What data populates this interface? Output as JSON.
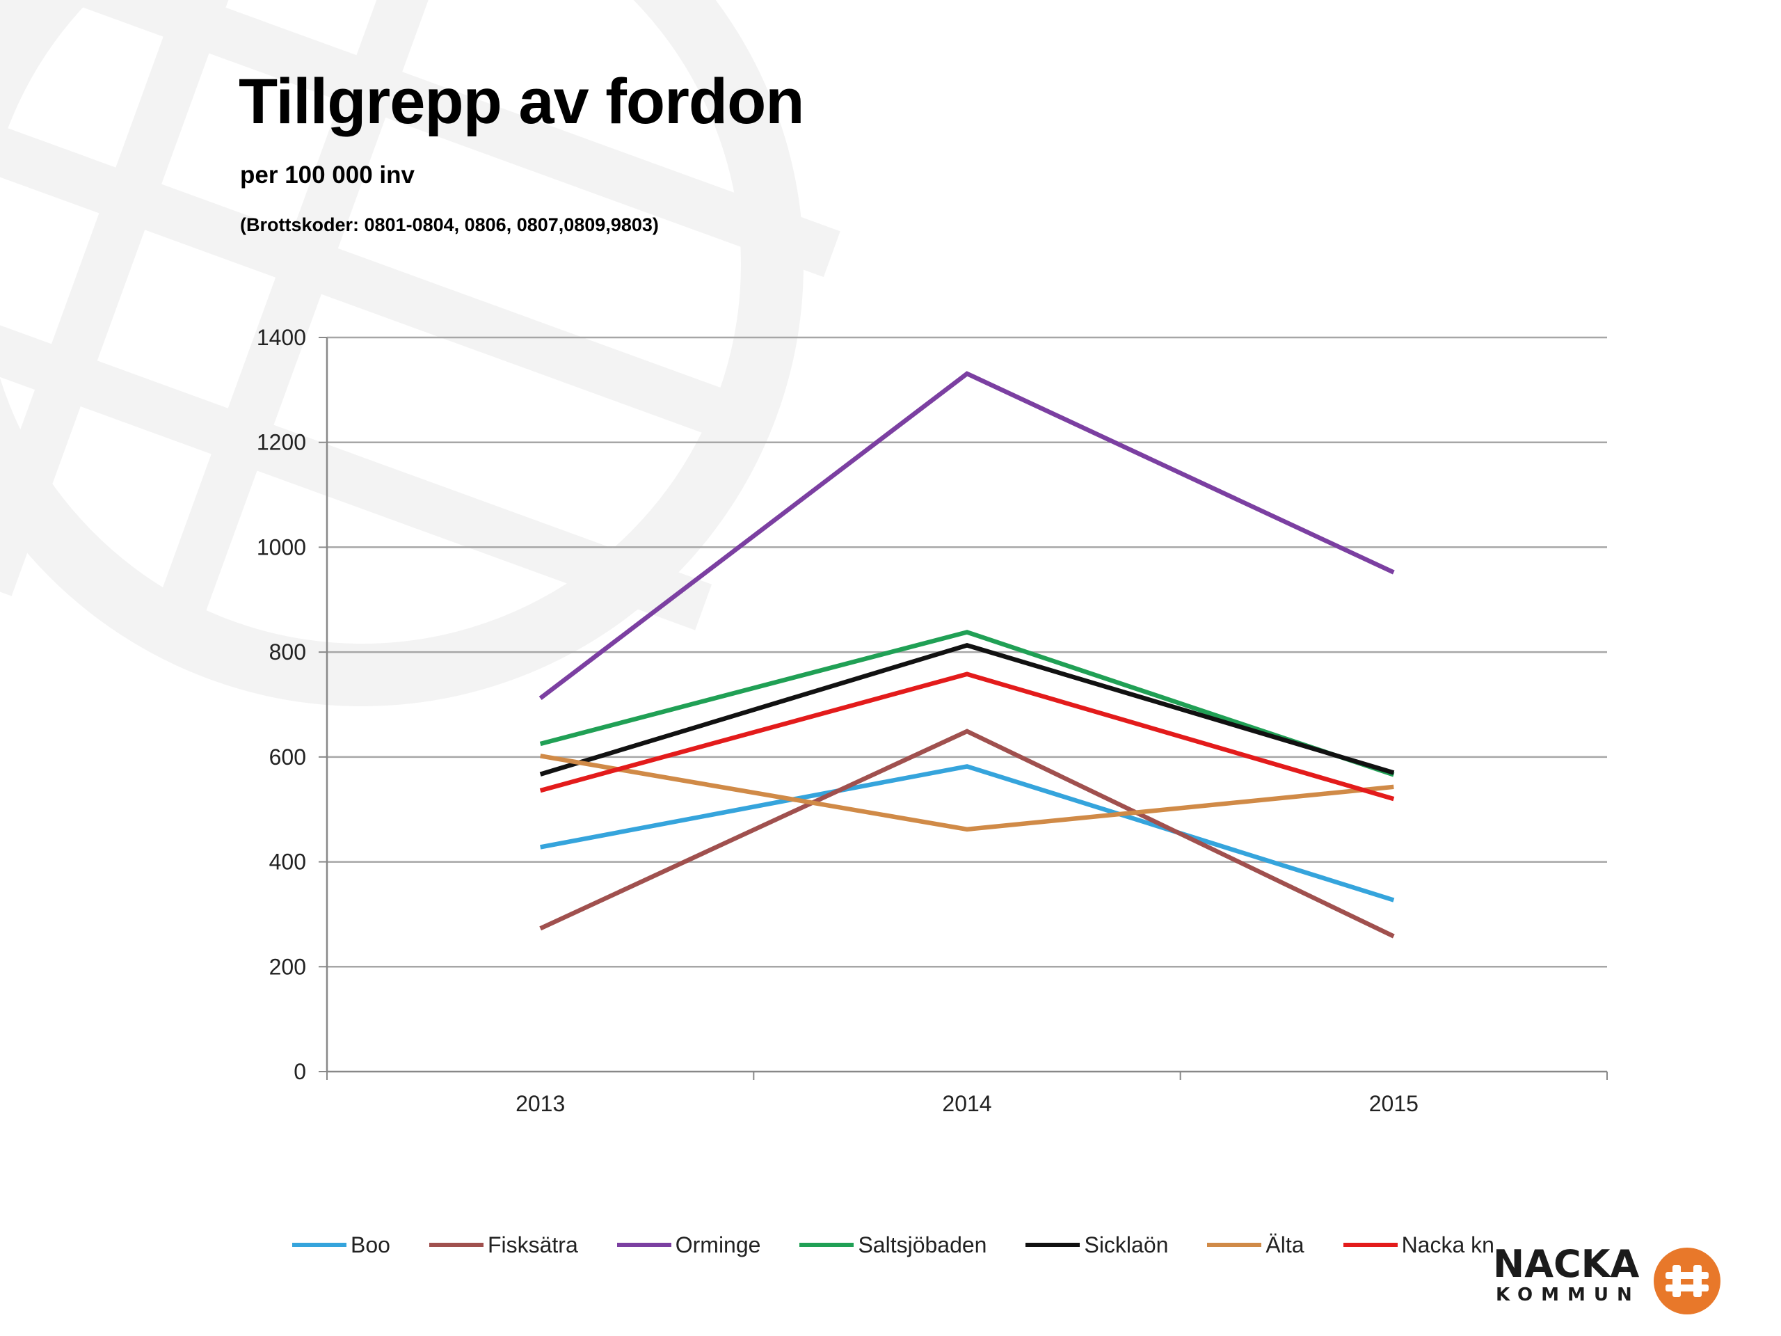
{
  "colors": {
    "background": "#ffffff",
    "grid": "#a6a6a6",
    "axis": "#888888",
    "watermark": "#f3f3f3",
    "logo_orange": "#e8782a"
  },
  "header": {
    "title": "Tillgrepp av fordon",
    "subtitle": "per 100 000 inv",
    "codes": "(Brottskoder: 0801-0804, 0806, 0807,0809,9803)"
  },
  "logo": {
    "line1": "NACKA",
    "line2": "KOMMUN"
  },
  "chart_data": {
    "type": "line",
    "x": [
      "2013",
      "2014",
      "2015"
    ],
    "ylim": [
      0,
      1400
    ],
    "yticks": [
      0,
      200,
      400,
      600,
      800,
      1000,
      1200,
      1400
    ],
    "grid": true,
    "legend_position": "bottom",
    "series": [
      {
        "name": "Boo",
        "color": "#35a4dc",
        "values": [
          428,
          582,
          327
        ]
      },
      {
        "name": "Fisksätra",
        "color": "#a0504e",
        "values": [
          273,
          649,
          258
        ]
      },
      {
        "name": "Orminge",
        "color": "#7b3fa1",
        "values": [
          712,
          1331,
          952
        ]
      },
      {
        "name": "Saltsjöbaden",
        "color": "#20a055",
        "values": [
          625,
          838,
          566
        ]
      },
      {
        "name": "Sicklaön",
        "color": "#111111",
        "values": [
          567,
          813,
          570
        ]
      },
      {
        "name": "Älta",
        "color": "#d08a47",
        "values": [
          602,
          462,
          543
        ]
      },
      {
        "name": "Nacka kn",
        "color": "#e31b1b",
        "values": [
          536,
          758,
          520
        ]
      }
    ]
  }
}
